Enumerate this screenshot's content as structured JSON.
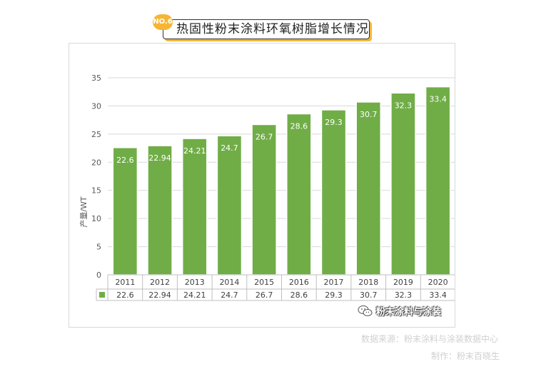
{
  "header": {
    "badge": "NO.6",
    "title": "热固性粉末涂料环氧树脂增长情况"
  },
  "chart_data": {
    "type": "bar",
    "categories": [
      "2011",
      "2012",
      "2013",
      "2014",
      "2015",
      "2016",
      "2017",
      "2018",
      "2019",
      "2020"
    ],
    "values": [
      22.6,
      22.94,
      24.21,
      24.7,
      26.7,
      28.6,
      29.3,
      30.7,
      32.3,
      33.4
    ],
    "value_labels": [
      "22.6",
      "22.94",
      "24.21",
      "24.7",
      "26.7",
      "28.6",
      "29.3",
      "30.7",
      "32.3",
      "33.4"
    ],
    "ylabel": "产量/WT",
    "ylim": [
      0,
      35
    ],
    "yticks": [
      "0",
      "5",
      "10",
      "15",
      "20",
      "25",
      "30",
      "35"
    ],
    "grid": true,
    "legend": "data-table",
    "bar_color": "#70ad47",
    "bar_border": "#ffffff"
  },
  "watermark": {
    "icon": "wechat-icon",
    "text": "粉末涂料与涂装"
  },
  "footer": {
    "source": "数据来源：粉末涂料与涂装数据中心",
    "maker": "制作：粉末百晓生"
  }
}
